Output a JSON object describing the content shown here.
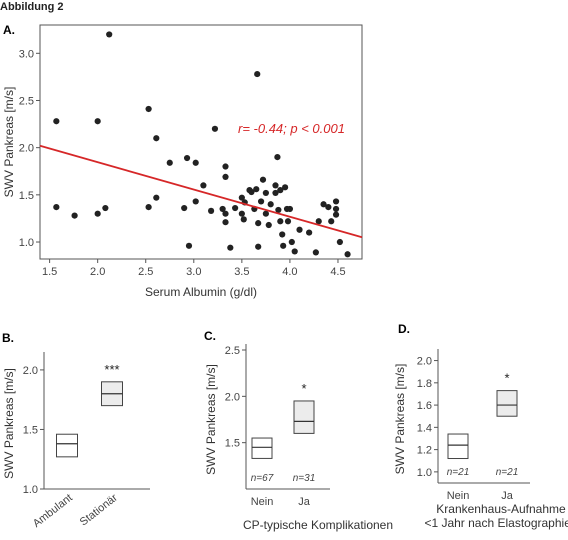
{
  "figure_title": "Abbildung 2",
  "chart_data": [
    {
      "type": "scatter",
      "panel": "A.",
      "xlabel": "Serum Albumin (g/dl)",
      "ylabel": "SWV Pankreas [m/s]",
      "xlim": [
        1.4,
        4.75
      ],
      "ylim": [
        0.82,
        3.3
      ],
      "xticks": [
        "1.5",
        "2.0",
        "2.5",
        "3.0",
        "3.5",
        "4.0",
        "4.5"
      ],
      "xtick_values": [
        1.5,
        2.0,
        2.5,
        3.0,
        3.5,
        4.0,
        4.5
      ],
      "yticks": [
        "1.0",
        "1.5",
        "2.0",
        "2.5",
        "3.0"
      ],
      "ytick_values": [
        1.0,
        1.5,
        2.0,
        2.5,
        3.0
      ],
      "annotation": "r= -0.44; p < 0.001",
      "regression": {
        "x": [
          1.4,
          4.75
        ],
        "y": [
          2.02,
          1.05
        ],
        "color": "#d62728"
      },
      "points": [
        [
          1.57,
          2.28
        ],
        [
          1.57,
          1.37
        ],
        [
          1.76,
          1.28
        ],
        [
          2.0,
          2.28
        ],
        [
          2.0,
          1.3
        ],
        [
          2.08,
          1.36
        ],
        [
          2.12,
          3.2
        ],
        [
          2.53,
          2.41
        ],
        [
          2.53,
          1.37
        ],
        [
          2.61,
          2.1
        ],
        [
          2.61,
          1.47
        ],
        [
          2.75,
          1.84
        ],
        [
          2.9,
          1.36
        ],
        [
          2.93,
          1.89
        ],
        [
          2.95,
          0.96
        ],
        [
          3.02,
          1.84
        ],
        [
          3.02,
          1.43
        ],
        [
          3.1,
          1.6
        ],
        [
          3.18,
          1.33
        ],
        [
          3.22,
          2.2
        ],
        [
          3.3,
          1.35
        ],
        [
          3.33,
          1.8
        ],
        [
          3.33,
          1.69
        ],
        [
          3.33,
          1.3
        ],
        [
          3.33,
          1.21
        ],
        [
          3.38,
          0.94
        ],
        [
          3.43,
          1.36
        ],
        [
          3.5,
          1.47
        ],
        [
          3.5,
          1.3
        ],
        [
          3.52,
          1.24
        ],
        [
          3.53,
          1.42
        ],
        [
          3.58,
          1.55
        ],
        [
          3.6,
          1.53
        ],
        [
          3.63,
          1.35
        ],
        [
          3.65,
          1.56
        ],
        [
          3.66,
          2.78
        ],
        [
          3.67,
          1.2
        ],
        [
          3.67,
          0.95
        ],
        [
          3.7,
          1.43
        ],
        [
          3.72,
          1.66
        ],
        [
          3.75,
          1.52
        ],
        [
          3.75,
          1.3
        ],
        [
          3.78,
          1.18
        ],
        [
          3.8,
          1.4
        ],
        [
          3.85,
          1.52
        ],
        [
          3.85,
          1.6
        ],
        [
          3.87,
          1.9
        ],
        [
          3.88,
          1.34
        ],
        [
          3.9,
          1.55
        ],
        [
          3.9,
          1.22
        ],
        [
          3.92,
          1.08
        ],
        [
          3.93,
          0.96
        ],
        [
          3.95,
          1.58
        ],
        [
          3.97,
          1.35
        ],
        [
          3.98,
          1.22
        ],
        [
          4.0,
          1.35
        ],
        [
          4.02,
          1.0
        ],
        [
          4.05,
          0.9
        ],
        [
          4.1,
          1.13
        ],
        [
          4.2,
          1.1
        ],
        [
          4.27,
          0.89
        ],
        [
          4.3,
          1.22
        ],
        [
          4.35,
          1.4
        ],
        [
          4.4,
          1.37
        ],
        [
          4.43,
          1.22
        ],
        [
          4.48,
          1.43
        ],
        [
          4.48,
          1.35
        ],
        [
          4.48,
          1.29
        ],
        [
          4.52,
          1.0
        ],
        [
          4.6,
          0.87
        ]
      ]
    },
    {
      "type": "box",
      "panel": "B.",
      "ylabel": "SWV Pankreas [m/s]",
      "ylim": [
        1.0,
        2.1
      ],
      "yticks": [
        "1.0",
        "1.5",
        "2.0"
      ],
      "ytick_values": [
        1.0,
        1.5,
        2.0
      ],
      "categories": [
        "Ambulant",
        "Stationär"
      ],
      "boxes": [
        {
          "low": 1.27,
          "mid": 1.38,
          "high": 1.46,
          "fill": "#ffffff",
          "n": ""
        },
        {
          "low": 1.7,
          "mid": 1.8,
          "high": 1.9,
          "fill": "#ececec",
          "n": ""
        }
      ],
      "significance": "***",
      "xlabel": ""
    },
    {
      "type": "box",
      "panel": "C.",
      "ylabel": "SWV Pankreas [m/s]",
      "ylim": [
        1.0,
        2.5
      ],
      "yticks": [
        "1.5",
        "2.0",
        "2.5"
      ],
      "ytick_values": [
        1.5,
        2.0,
        2.5
      ],
      "categories": [
        "Nein",
        "Ja"
      ],
      "boxes": [
        {
          "low": 1.33,
          "mid": 1.45,
          "high": 1.55,
          "fill": "#ffffff",
          "n": "n=67"
        },
        {
          "low": 1.6,
          "mid": 1.73,
          "high": 1.95,
          "fill": "#ececec",
          "n": "n=31"
        }
      ],
      "significance": "*",
      "xlabel": "CP-typische Komplikationen"
    },
    {
      "type": "box",
      "panel": "D.",
      "ylabel": "SWV Pankreas [m/s]",
      "ylim": [
        0.9,
        2.05
      ],
      "yticks": [
        "1.0",
        "1.2",
        "1.4",
        "1.6",
        "1.8",
        "2.0"
      ],
      "ytick_values": [
        1.0,
        1.2,
        1.4,
        1.6,
        1.8,
        2.0
      ],
      "categories": [
        "Nein",
        "Ja"
      ],
      "boxes": [
        {
          "low": 1.12,
          "mid": 1.24,
          "high": 1.34,
          "fill": "#ffffff",
          "n": "n=21"
        },
        {
          "low": 1.5,
          "mid": 1.6,
          "high": 1.73,
          "fill": "#ececec",
          "n": "n=21"
        }
      ],
      "significance": "*",
      "xlabel_lines": [
        "Krankenhaus-Aufnahme",
        "<1 Jahr nach Elastographie?"
      ]
    }
  ]
}
